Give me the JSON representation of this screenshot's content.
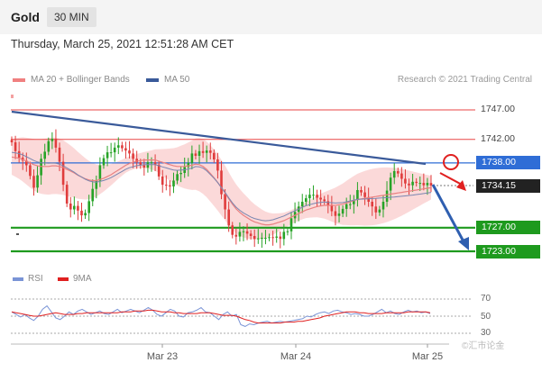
{
  "header": {
    "title": "Gold",
    "timeframe": "30 MIN"
  },
  "timestamp": "Thursday, March 25, 2021 12:51:28 AM CET",
  "legend": {
    "bollinger_label": "MA 20 + Bollinger Bands",
    "ma50_label": "MA 50",
    "bollinger_color": "#f08080",
    "ma50_color": "#3a5a9a"
  },
  "copyright": "Research © 2021 Trading Central",
  "rsi_legend": {
    "rsi_label": "RSI",
    "ma9_label": "9MA",
    "rsi_color": "#7a94d6",
    "ma9_color": "#e02020"
  },
  "watermark": "©汇市论金",
  "chart_data": {
    "type": "candlestick",
    "x_labels": [
      "Mar 23",
      "Mar 24",
      "Mar 25"
    ],
    "y_range": [
      1721,
      1749
    ],
    "levels": [
      {
        "price": 1747.0,
        "label": "1747.00",
        "kind": "resistance",
        "color": "#e84545"
      },
      {
        "price": 1742.0,
        "label": "1742.00",
        "kind": "resistance",
        "color": "#e84545"
      },
      {
        "price": 1738.0,
        "label": "1738.00",
        "kind": "pivot",
        "color": "#2f6dd6"
      },
      {
        "price": 1734.15,
        "label": "1734.15",
        "kind": "last",
        "color": "#222222"
      },
      {
        "price": 1727.0,
        "label": "1727.00",
        "kind": "support",
        "color": "#1e9a1e"
      },
      {
        "price": 1723.0,
        "label": "1723.00",
        "kind": "support",
        "color": "#1e9a1e"
      }
    ],
    "close": [
      1741.5,
      1740.0,
      1738.9,
      1738.4,
      1737.6,
      1735.8,
      1733.8,
      1735.9,
      1738.7,
      1739.9,
      1741.7,
      1742.1,
      1740.6,
      1738.2,
      1734.3,
      1731.1,
      1730.1,
      1730.7,
      1729.9,
      1729.1,
      1729.5,
      1731.5,
      1733.6,
      1735.0,
      1737.6,
      1738.8,
      1739.8,
      1739.8,
      1740.6,
      1741.0,
      1740.5,
      1740.1,
      1739.6,
      1738.7,
      1738.1,
      1737.6,
      1737.2,
      1738.1,
      1738.1,
      1737.7,
      1735.7,
      1734.3,
      1734.2,
      1734.0,
      1735.0,
      1736.1,
      1736.3,
      1737.3,
      1738.0,
      1739.6,
      1739.2,
      1740.0,
      1739.7,
      1740.1,
      1739.7,
      1738.6,
      1736.7,
      1732.7,
      1730.1,
      1727.4,
      1725.8,
      1725.5,
      1726.3,
      1726.4,
      1726.0,
      1725.6,
      1725.1,
      1725.2,
      1725.3,
      1725.3,
      1725.4,
      1725.3,
      1725.5,
      1725.1,
      1726.3,
      1726.4,
      1728.6,
      1729.7,
      1730.6,
      1731.4,
      1732.0,
      1732.6,
      1732.6,
      1732.1,
      1731.8,
      1731.5,
      1730.8,
      1729.8,
      1729.0,
      1729.4,
      1730.2,
      1731.0,
      1731.0,
      1731.7,
      1733.4,
      1733.0,
      1732.2,
      1731.4,
      1730.6,
      1729.6,
      1730.1,
      1731.4,
      1733.3,
      1735.5,
      1736.6,
      1736.2,
      1735.3,
      1734.5,
      1734.2,
      1734.8,
      1734.6,
      1734.6,
      1734.2,
      1734.6,
      1734.15
    ],
    "ma20": [
      1739.0,
      1738.9,
      1738.8,
      1738.6,
      1738.3,
      1738.0,
      1737.7,
      1737.5,
      1737.4,
      1737.4,
      1737.4,
      1737.5,
      1737.5,
      1737.4,
      1737.2,
      1736.9,
      1736.6,
      1736.3,
      1735.9,
      1735.6,
      1735.3,
      1735.1,
      1735.0,
      1735.0,
      1735.2,
      1735.4,
      1735.7,
      1736.0,
      1736.4,
      1736.8,
      1737.2,
      1737.6,
      1737.9,
      1738.1,
      1738.3,
      1738.4,
      1738.5,
      1738.5,
      1738.5,
      1738.5,
      1738.3,
      1738.1,
      1737.9,
      1737.7,
      1737.5,
      1737.4,
      1737.4,
      1737.4,
      1737.5,
      1737.6,
      1737.8,
      1737.7,
      1737.4,
      1736.9,
      1736.2,
      1735.5,
      1734.7,
      1733.8,
      1732.9,
      1731.9,
      1731.0,
      1730.2,
      1729.6,
      1729.1,
      1728.7,
      1728.3,
      1728.0,
      1727.8,
      1727.6,
      1727.5,
      1727.5,
      1727.6,
      1727.8,
      1728.0,
      1728.2,
      1728.5,
      1728.8,
      1729.1,
      1729.4,
      1729.7,
      1730.0,
      1730.2,
      1730.4,
      1730.6,
      1730.7,
      1730.8,
      1730.8,
      1730.8,
      1730.8,
      1730.9,
      1731.0,
      1731.2,
      1731.4,
      1731.6,
      1731.8,
      1731.9,
      1732.0,
      1732.1,
      1732.2,
      1732.3,
      1732.4,
      1732.5,
      1732.6,
      1732.7,
      1732.8,
      1732.9,
      1733.0,
      1733.1,
      1733.2,
      1733.3,
      1733.4,
      1733.5,
      1733.6,
      1733.7,
      1733.8
    ],
    "rsi": [
      55,
      52,
      49,
      52,
      48,
      45,
      50,
      58,
      62,
      55,
      48,
      46,
      50,
      55,
      52,
      56,
      58,
      55,
      52,
      54,
      56,
      53,
      52,
      55,
      58,
      54,
      56,
      58,
      56,
      54,
      57,
      60,
      57,
      52,
      50,
      54,
      58,
      56,
      50,
      49,
      54,
      55,
      57,
      60,
      55,
      54,
      50,
      46,
      52,
      55,
      50,
      52,
      40,
      38,
      41,
      40,
      42,
      43,
      44,
      42,
      43,
      44,
      43,
      44,
      45,
      46,
      47,
      50,
      49,
      52,
      54,
      55,
      53,
      56,
      57,
      55,
      54,
      52,
      53,
      52,
      50,
      50,
      52,
      55,
      58,
      54,
      56,
      53,
      52,
      55,
      57,
      55,
      56,
      54,
      55,
      53
    ],
    "rsi_ma9": [
      55,
      54,
      53,
      52,
      51,
      50,
      50,
      51,
      52,
      53,
      54,
      53,
      52,
      52,
      52,
      53,
      53,
      54,
      54,
      54,
      54,
      54,
      54,
      54,
      54,
      55,
      55,
      55,
      56,
      56,
      56,
      57,
      57,
      56,
      55,
      55,
      55,
      54,
      54,
      53,
      53,
      53,
      53,
      54,
      54,
      54,
      53,
      52,
      51,
      51,
      51,
      50,
      48,
      46,
      45,
      43,
      42,
      42,
      42,
      42,
      42,
      42,
      43,
      43,
      43,
      44,
      44,
      45,
      46,
      47,
      48,
      50,
      51,
      52,
      53,
      54,
      55,
      55,
      55,
      54,
      54,
      53,
      53,
      53,
      53,
      54,
      54,
      54,
      54,
      54,
      55,
      55,
      55,
      55,
      55,
      54
    ],
    "rsi_levels": [
      70,
      50,
      30
    ],
    "forecast": "bearish toward 1727.00 and 1723.00"
  }
}
